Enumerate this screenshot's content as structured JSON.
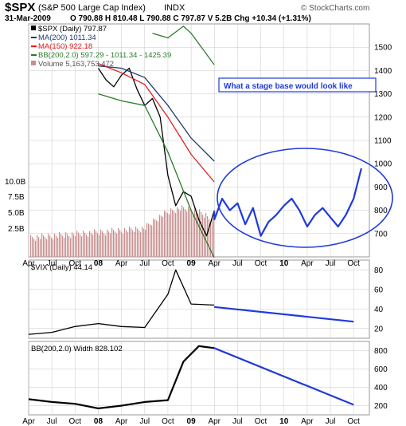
{
  "header": {
    "symbol": "$SPX",
    "name": "(S&P 500 Large Cap Index)",
    "exchange": "INDX",
    "date": "31-Mar-2009",
    "ohlc": "O 790.88  H 810.48  L 790.88  C 797.87  V 5.2B  Chg +10.34 (+1.31%)",
    "watermark": "© StockCharts.com"
  },
  "annotation": "What a stage base would look like",
  "panels": {
    "price": {
      "legend": [
        "$SPX (Daily) 797.87",
        "MA(200) 1011.34",
        "MA(150) 922.18",
        "BB(200,2.0) 597.29 - 1011.34 - 1425.39",
        "Volume 5,163,753,472"
      ],
      "volume_ticks": [
        "10.0B",
        "7.5B",
        "5.0B",
        "2.5B"
      ]
    },
    "vix": {
      "legend": "$VIX (Daily) 44.14"
    },
    "bbwidth": {
      "legend": "BB(200,2.0) Width 828.102"
    }
  },
  "colors": {
    "price": "#000000",
    "ma200": "#1f3a70",
    "ma150": "#e02020",
    "bb": "#2b7a2b",
    "volume": "#c98f8f",
    "projection": "#1f3adb",
    "grid": "#c8c8c8"
  },
  "chart_data": [
    {
      "type": "line",
      "title": "$SPX (S&P 500 Large Cap Index) INDX",
      "x_ticks": [
        "Apr",
        "Jul",
        "Oct",
        "08",
        "Apr",
        "Jul",
        "Oct",
        "09",
        "Apr",
        "Jul",
        "Oct",
        "10",
        "Apr",
        "Jul",
        "Oct"
      ],
      "ylim": [
        600,
        1600
      ],
      "y_ticks": [
        700,
        800,
        900,
        1000,
        1100,
        1200,
        1300,
        1400,
        1500
      ],
      "series": [
        {
          "name": "$SPX (Daily) 797.87",
          "x": [
            "2008-01",
            "2008-02",
            "2008-03",
            "2008-04",
            "2008-05",
            "2008-06",
            "2008-07",
            "2008-08",
            "2008-09",
            "2008-10",
            "2008-11",
            "2008-12",
            "2009-01",
            "2009-02",
            "2009-03",
            "2009-03-31"
          ],
          "y": [
            1410,
            1360,
            1330,
            1380,
            1410,
            1320,
            1250,
            1280,
            1200,
            950,
            820,
            880,
            860,
            760,
            690,
            798
          ]
        },
        {
          "name": "MA(200) 1011.34",
          "x": [
            "2008-01",
            "2008-04",
            "2008-07",
            "2008-10",
            "2009-01",
            "2009-03-31"
          ],
          "y": [
            1420,
            1410,
            1370,
            1250,
            1110,
            1011
          ]
        },
        {
          "name": "MA(150) 922.18",
          "x": [
            "2008-01",
            "2008-04",
            "2008-07",
            "2008-10",
            "2009-01",
            "2009-03-31"
          ],
          "y": [
            1430,
            1390,
            1340,
            1200,
            1040,
            922
          ]
        },
        {
          "name": "BB(200,2.0) lower",
          "x": [
            "2008-01",
            "2008-04",
            "2008-07",
            "2008-10",
            "2009-01",
            "2009-03-31"
          ],
          "y": [
            1300,
            1270,
            1250,
            1050,
            800,
            597
          ]
        },
        {
          "name": "BB(200,2.0) upper",
          "x": [
            "2008-08",
            "2008-10",
            "2008-12",
            "2009-01",
            "2009-03-31"
          ],
          "y": [
            1560,
            1540,
            1590,
            1560,
            1425
          ]
        },
        {
          "name": "projection",
          "x": [
            "2009-03-31",
            "2009-04",
            "2009-05",
            "2009-06",
            "2009-07",
            "2009-08",
            "2009-09",
            "2009-10",
            "2009-11",
            "2009-12",
            "2010-01",
            "2010-02",
            "2010-03",
            "2010-04",
            "2010-05",
            "2010-06",
            "2010-07",
            "2010-08",
            "2010-09",
            "2010-10",
            "2010-11"
          ],
          "y": [
            798,
            760,
            850,
            800,
            830,
            740,
            810,
            690,
            750,
            780,
            820,
            850,
            800,
            730,
            780,
            810,
            770,
            730,
            780,
            850,
            980
          ]
        }
      ],
      "volume_range_B": [
        0,
        12
      ]
    },
    {
      "type": "line",
      "title": "$VIX (Daily) 44.14",
      "ylim": [
        10,
        90
      ],
      "y_ticks": [
        20,
        40,
        60,
        80
      ],
      "series": [
        {
          "name": "$VIX (Daily) 44.14",
          "x": [
            "2007-04",
            "2007-07",
            "2007-10",
            "2008-01",
            "2008-04",
            "2008-07",
            "2008-10",
            "2008-11",
            "2009-01",
            "2009-03-31"
          ],
          "y": [
            14,
            16,
            22,
            25,
            22,
            21,
            55,
            80,
            45,
            44
          ]
        },
        {
          "name": "projection",
          "x": [
            "2009-03-31",
            "2010-10"
          ],
          "y": [
            42,
            27
          ]
        }
      ]
    },
    {
      "type": "line",
      "title": "BB(200,2.0) Width 828.102",
      "ylim": [
        100,
        900
      ],
      "y_ticks": [
        200,
        400,
        600,
        800
      ],
      "series": [
        {
          "name": "BB(200,2.0) Width 828.102",
          "x": [
            "2007-04",
            "2007-07",
            "2007-10",
            "2008-01",
            "2008-04",
            "2008-07",
            "2008-10",
            "2008-12",
            "2009-02",
            "2009-03-31"
          ],
          "y": [
            270,
            240,
            220,
            170,
            200,
            240,
            260,
            680,
            850,
            828
          ]
        },
        {
          "name": "projection",
          "x": [
            "2009-03-31",
            "2010-10"
          ],
          "y": [
            828,
            210
          ]
        }
      ]
    }
  ]
}
